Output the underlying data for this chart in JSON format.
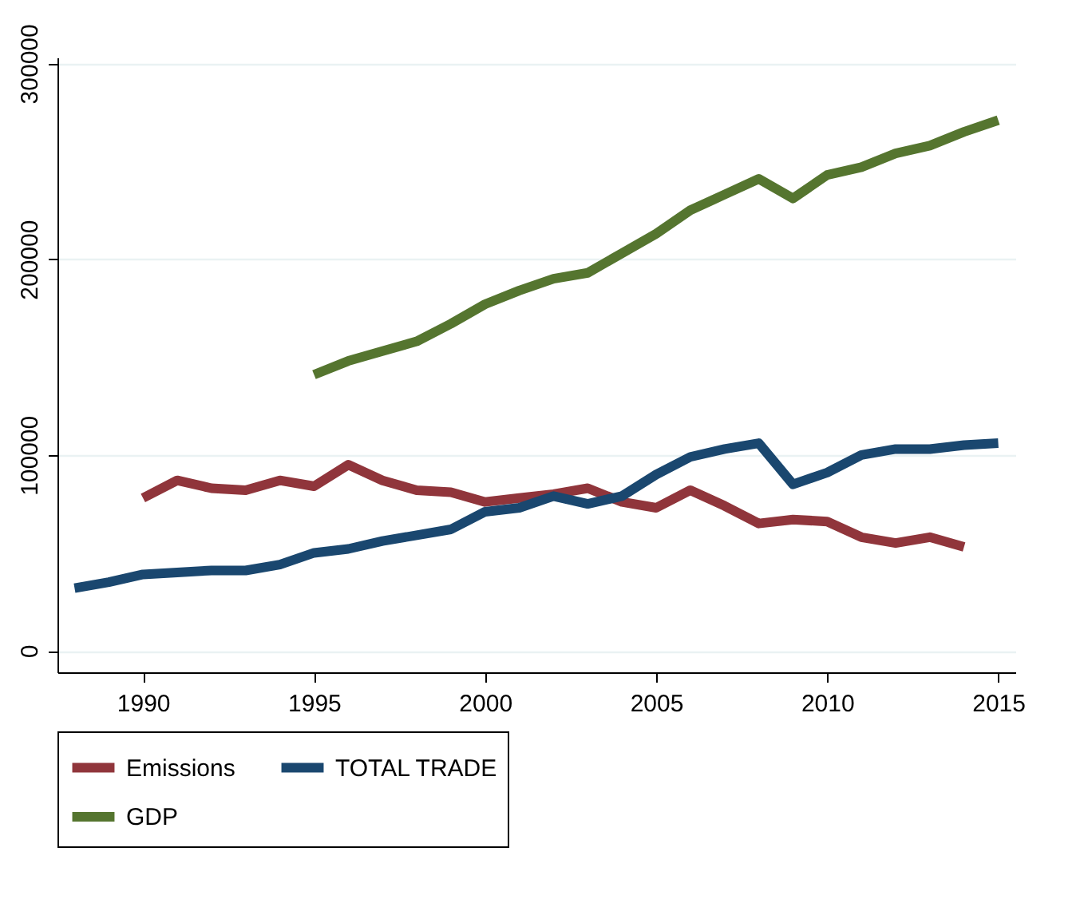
{
  "chart_data": {
    "type": "line",
    "xlim": [
      1987.5,
      2015.5
    ],
    "xticks": [
      1990,
      1995,
      2000,
      2005,
      2010,
      2015
    ],
    "ylim": [
      -11000,
      303000
    ],
    "yticks": [
      0,
      100000,
      200000,
      300000
    ],
    "grid": "y",
    "legend": "bottom",
    "line_style": "solid",
    "marker": "none",
    "series": [
      {
        "name": "Emissions",
        "color": "#90353b",
        "x": [
          1990,
          1991,
          1992,
          1993,
          1994,
          1995,
          1996,
          1997,
          1998,
          1999,
          2000,
          2001,
          2002,
          2003,
          2004,
          2005,
          2006,
          2007,
          2008,
          2009,
          2010,
          2011,
          2012,
          2013,
          2014
        ],
        "values": [
          78000,
          87000,
          83000,
          82000,
          87000,
          84000,
          95000,
          87000,
          82000,
          81000,
          76000,
          78000,
          80000,
          83000,
          76000,
          73000,
          82000,
          74000,
          65000,
          67000,
          66000,
          58000,
          55000,
          58000,
          53000
        ]
      },
      {
        "name": "TOTAL TRADE",
        "color": "#1a476f",
        "x": [
          1988,
          1989,
          1990,
          1991,
          1992,
          1993,
          1994,
          1995,
          1996,
          1997,
          1998,
          1999,
          2000,
          2001,
          2002,
          2003,
          2004,
          2005,
          2006,
          2007,
          2008,
          2009,
          2010,
          2011,
          2012,
          2013,
          2014,
          2015
        ],
        "values": [
          32000,
          35000,
          39000,
          40000,
          41000,
          41000,
          44000,
          50000,
          52000,
          56000,
          59000,
          62000,
          71000,
          73000,
          79000,
          75000,
          79000,
          90000,
          99000,
          103000,
          106000,
          85000,
          91000,
          100000,
          103000,
          103000,
          105000,
          106000
        ]
      },
      {
        "name": "GDP",
        "color": "#55752f",
        "x": [
          1995,
          1996,
          1997,
          1998,
          1999,
          2000,
          2001,
          2002,
          2003,
          2004,
          2005,
          2006,
          2007,
          2008,
          2009,
          2010,
          2011,
          2012,
          2013,
          2014,
          2015
        ],
        "values": [
          141000,
          148000,
          153000,
          158000,
          167000,
          177000,
          184000,
          190000,
          193000,
          203000,
          213000,
          225000,
          233000,
          241000,
          231000,
          243000,
          247000,
          254000,
          258000,
          265000,
          271000
        ]
      }
    ]
  }
}
